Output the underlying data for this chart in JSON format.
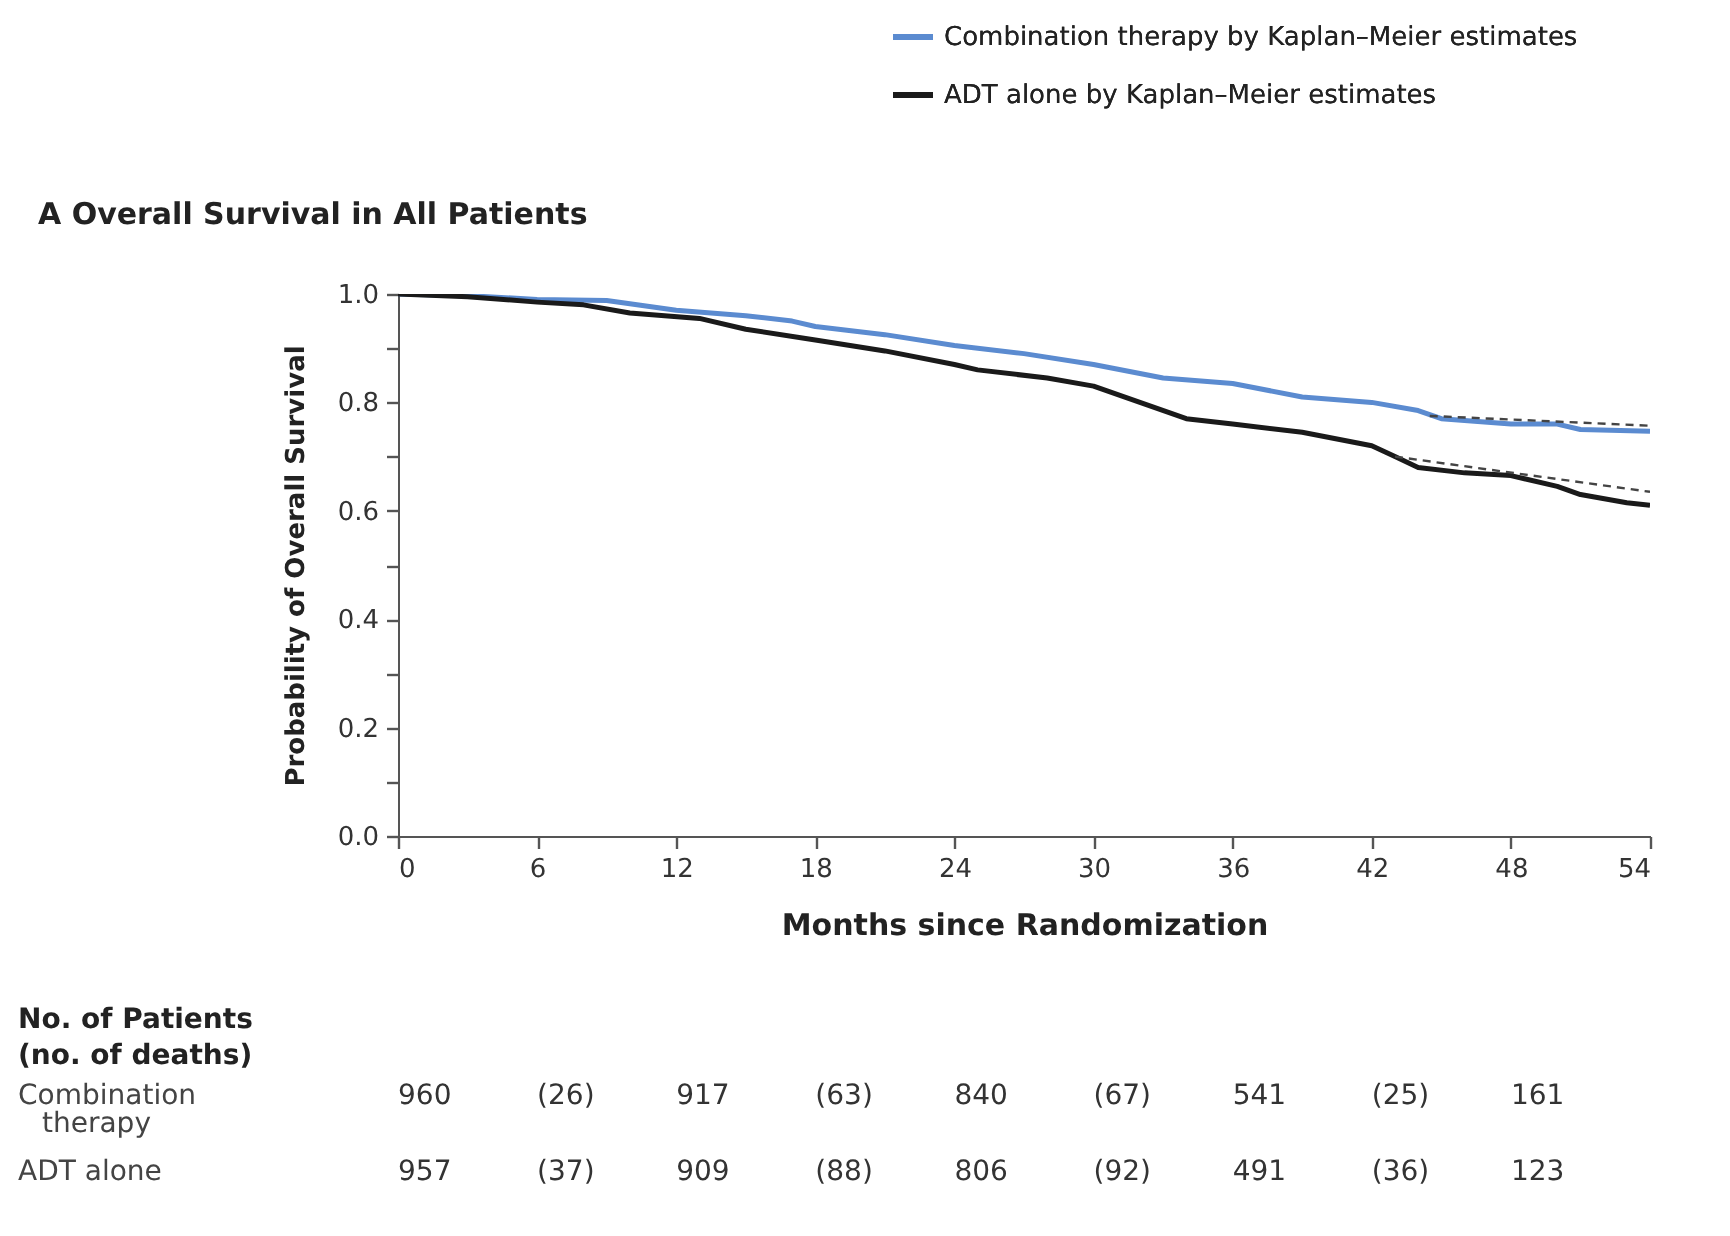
{
  "chart_data": {
    "type": "line",
    "title": "A  Overall Survival in All Patients",
    "xlabel": "Months since Randomization",
    "ylabel": "Probability of Overall Survival",
    "series": [
      {
        "name": "Combination therapy by Kaplan–Meier estimates",
        "color": "#5b8bd0",
        "x": [
          0,
          3,
          6,
          9,
          12,
          15,
          17,
          18,
          21,
          24,
          27,
          30,
          33,
          36,
          39,
          42,
          44,
          45,
          48,
          50,
          51,
          54
        ],
        "values": [
          1.0,
          0.997,
          0.99,
          0.988,
          0.97,
          0.96,
          0.95,
          0.94,
          0.925,
          0.905,
          0.89,
          0.87,
          0.845,
          0.835,
          0.81,
          0.8,
          0.785,
          0.77,
          0.76,
          0.76,
          0.75,
          0.747
        ]
      },
      {
        "name": "ADT alone by Kaplan–Meier estimates",
        "color": "#1a1a1a",
        "x": [
          0,
          3,
          6,
          8,
          10,
          13,
          15,
          18,
          21,
          24,
          25,
          28,
          30,
          32,
          34,
          36,
          39,
          42,
          43,
          44,
          46,
          48,
          50,
          51,
          53,
          54
        ],
        "values": [
          1.0,
          0.995,
          0.985,
          0.98,
          0.965,
          0.955,
          0.935,
          0.915,
          0.895,
          0.87,
          0.86,
          0.845,
          0.83,
          0.8,
          0.77,
          0.76,
          0.745,
          0.72,
          0.7,
          0.68,
          0.67,
          0.665,
          0.645,
          0.63,
          0.615,
          0.61
        ]
      },
      {
        "type": "line",
        "line_style": "dashed",
        "color": "#444444",
        "x": [
          44.5,
          54
        ],
        "values": [
          0.775,
          0.757
        ]
      },
      {
        "type": "line",
        "line_style": "dashed",
        "color": "#444444",
        "x": [
          43,
          54
        ],
        "values": [
          0.7,
          0.635
        ]
      }
    ],
    "xlim": [
      0,
      54
    ],
    "xticks": [
      0,
      6,
      12,
      18,
      24,
      30,
      36,
      42,
      48,
      54
    ],
    "ylim": [
      0,
      1
    ],
    "yticks": [
      {
        "value": 0,
        "label": "0.0"
      },
      {
        "value": 0.1,
        "label": null
      },
      {
        "value": 0.2,
        "label": "0.2"
      },
      {
        "value": 0.3,
        "label": null
      },
      {
        "value": 0.4,
        "label": "0.4"
      },
      {
        "value": 0.5,
        "label": null
      },
      {
        "value": 0.6,
        "label": "0.6"
      },
      {
        "value": 0.7,
        "label": null
      },
      {
        "value": 0.8,
        "label": "0.8"
      },
      {
        "value": 0.9,
        "label": null
      },
      {
        "value": 1.0,
        "label": "1.0"
      }
    ],
    "grid": false,
    "legend": "top right",
    "marker": "none",
    "line_style": "solid",
    "annotations": [
      "No. of Patients",
      "(no. of deaths)",
      "Combination therapy",
      "960",
      "(26)",
      "917",
      "(63)",
      "840",
      "(67)",
      "541",
      "(25)",
      "161",
      "ADT alone",
      "957",
      "(37)",
      "909",
      "(88)",
      "806",
      "(92)",
      "491",
      "(36)",
      "123"
    ]
  }
}
